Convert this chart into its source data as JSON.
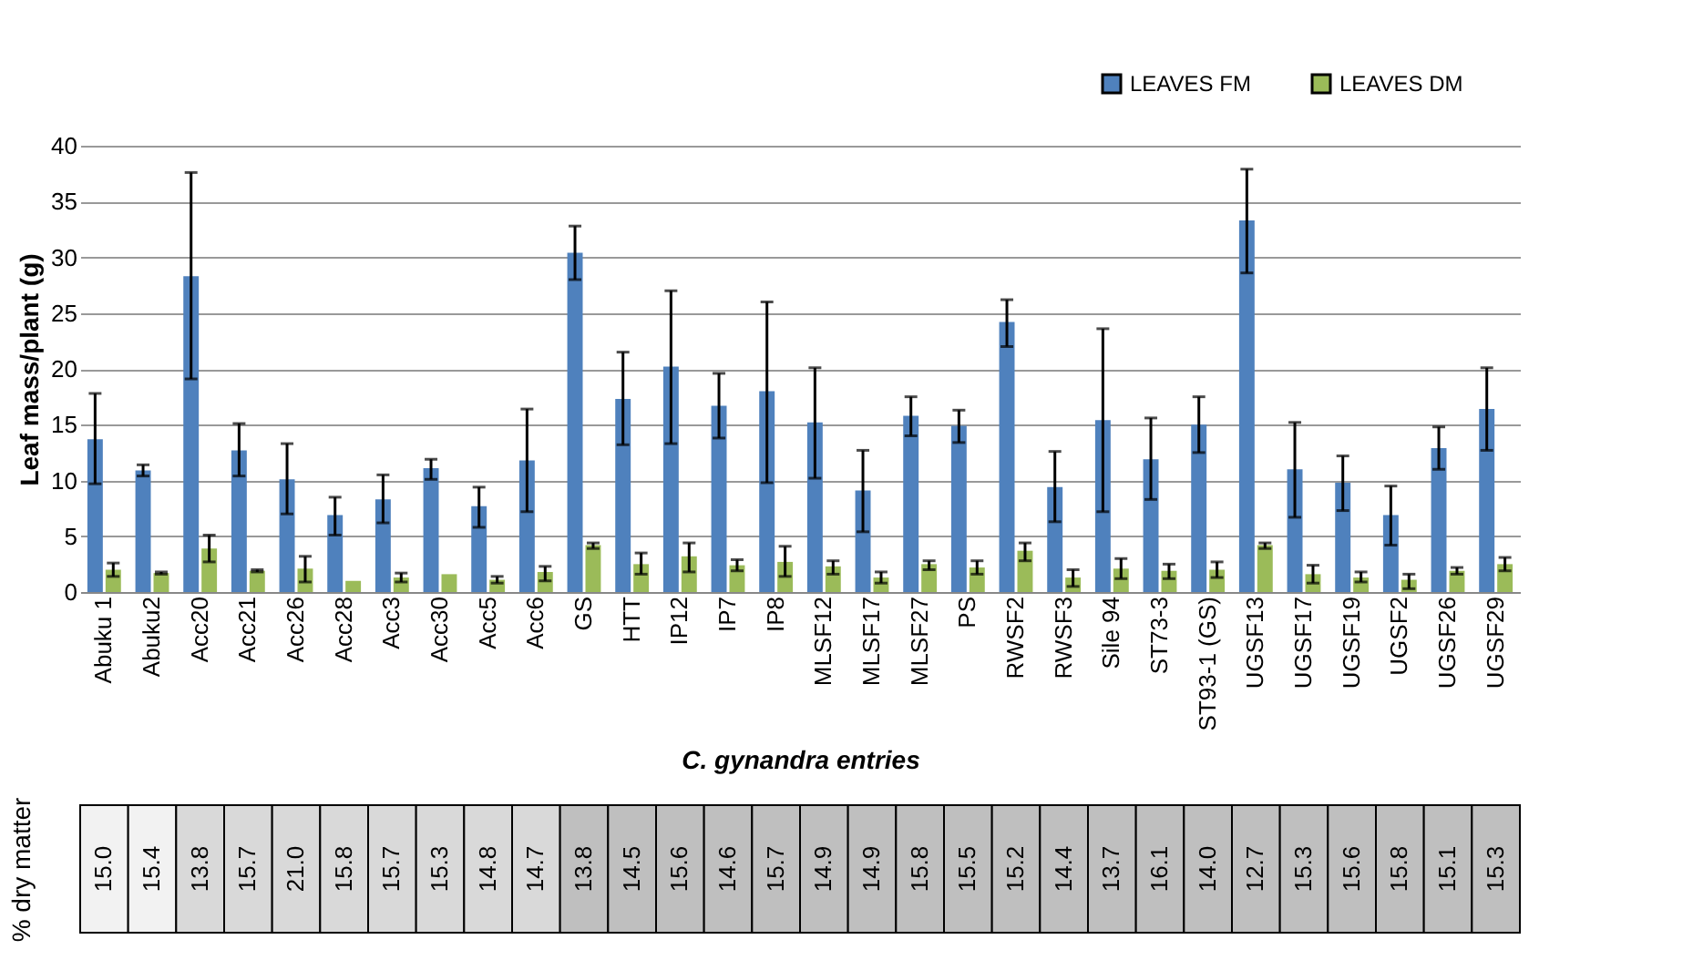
{
  "chart_data": [
    {
      "type": "bar",
      "xlabel": "C. gynandra entries",
      "ylabel": "Leaf mass/plant (g)",
      "categories": [
        "Abuku 1",
        "Abuku2",
        "Acc20",
        "Acc21",
        "Acc26",
        "Acc28",
        "Acc3",
        "Acc30",
        "Acc5",
        "Acc6",
        "GS",
        "HTT",
        "IP12",
        "IP7",
        "IP8",
        "MLSF12",
        "MLSF17",
        "MLSF27",
        "PS",
        "RWSF2",
        "RWSF3",
        "Sile 94",
        "ST73-3",
        "ST93-1 (GS)",
        "UGSF13",
        "UGSF17",
        "UGSF19",
        "UGSF2",
        "UGSF26",
        "UGSF29"
      ],
      "series": [
        {
          "name": "LEAVES FM",
          "color": "#4f81bd",
          "values": [
            13.7,
            10.9,
            28.3,
            12.7,
            10.1,
            6.9,
            8.3,
            11.1,
            7.7,
            11.8,
            30.4,
            17.3,
            20.2,
            16.7,
            18.0,
            15.2,
            9.1,
            15.8,
            14.9,
            24.2,
            9.4,
            15.4,
            11.9,
            15.0,
            33.3,
            11.0,
            9.8,
            6.9,
            12.9,
            16.4
          ],
          "errors": [
            [
              9.7,
              17.8
            ],
            [
              10.4,
              11.4
            ],
            [
              19.1,
              37.6
            ],
            [
              10.4,
              15.1
            ],
            [
              7.0,
              13.3
            ],
            [
              5.1,
              8.5
            ],
            [
              6.2,
              10.5
            ],
            [
              10.1,
              11.9
            ],
            [
              5.8,
              9.4
            ],
            [
              7.2,
              16.4
            ],
            [
              28.0,
              32.8
            ],
            [
              13.2,
              21.5
            ],
            [
              13.3,
              27.0
            ],
            [
              13.8,
              19.6
            ],
            [
              9.8,
              26.0
            ],
            [
              10.2,
              20.1
            ],
            [
              5.4,
              12.7
            ],
            [
              14.0,
              17.5
            ],
            [
              13.4,
              16.3
            ],
            [
              22.0,
              26.2
            ],
            [
              6.3,
              12.6
            ],
            [
              7.2,
              23.6
            ],
            [
              8.3,
              15.6
            ],
            [
              12.5,
              17.5
            ],
            [
              28.6,
              37.9
            ],
            [
              6.7,
              15.2
            ],
            [
              7.3,
              12.2
            ],
            [
              4.2,
              9.5
            ],
            [
              11.0,
              14.8
            ],
            [
              12.7,
              20.1
            ]
          ]
        },
        {
          "name": "LEAVES DM",
          "color": "#9bbb59",
          "values": [
            2.0,
            1.7,
            3.9,
            1.9,
            2.1,
            1.0,
            1.3,
            1.6,
            1.1,
            1.8,
            4.2,
            2.5,
            3.2,
            2.4,
            2.7,
            2.3,
            1.3,
            2.5,
            2.2,
            3.7,
            1.3,
            2.1,
            1.9,
            2.0,
            4.2,
            1.6,
            1.3,
            1.1,
            1.9,
            2.5
          ],
          "errors": [
            [
              1.4,
              2.6
            ],
            [
              1.6,
              1.8
            ],
            [
              2.7,
              5.1
            ],
            [
              1.8,
              2.0
            ],
            [
              0.9,
              3.2
            ],
            null,
            [
              0.9,
              1.7
            ],
            null,
            [
              0.8,
              1.4
            ],
            [
              1.0,
              2.3
            ],
            [
              3.9,
              4.4
            ],
            [
              1.6,
              3.5
            ],
            [
              1.8,
              4.4
            ],
            [
              1.9,
              2.9
            ],
            [
              1.4,
              4.1
            ],
            [
              1.6,
              2.8
            ],
            [
              0.8,
              1.8
            ],
            [
              2.0,
              2.8
            ],
            [
              1.6,
              2.8
            ],
            [
              2.8,
              4.4
            ],
            [
              0.5,
              2.0
            ],
            [
              1.2,
              3.0
            ],
            [
              1.2,
              2.5
            ],
            [
              1.3,
              2.7
            ],
            [
              3.9,
              4.4
            ],
            [
              0.8,
              2.4
            ],
            [
              0.9,
              1.8
            ],
            [
              0.3,
              1.6
            ],
            [
              1.6,
              2.2
            ],
            [
              1.9,
              3.1
            ]
          ]
        }
      ],
      "ylim": [
        0,
        40
      ],
      "yticks": [
        0,
        5,
        10,
        15,
        20,
        25,
        30,
        35,
        40
      ],
      "grid": "y",
      "legend": "top right"
    },
    {
      "type": "other",
      "ylabel": "% dry matter",
      "value_labels": [
        "15.0",
        "15.4",
        "13.8",
        "15.7",
        "21.0",
        "15.8",
        "15.7",
        "15.3",
        "14.8",
        "14.7",
        "13.8",
        "14.5",
        "15.6",
        "14.6",
        "15.7",
        "14.9",
        "14.9",
        "15.8",
        "15.5",
        "15.2",
        "14.4",
        "13.7",
        "16.1",
        "14.0",
        "12.7",
        "15.3",
        "15.6",
        "15.8",
        "15.1",
        "15.3"
      ],
      "values": [
        15.0,
        15.4,
        13.8,
        15.7,
        21.0,
        15.8,
        15.7,
        15.3,
        14.8,
        14.7,
        13.8,
        14.5,
        15.6,
        14.6,
        15.7,
        14.9,
        14.9,
        15.8,
        15.5,
        15.2,
        14.4,
        13.7,
        16.1,
        14.0,
        12.7,
        15.3,
        15.6,
        15.8,
        15.1,
        15.3
      ],
      "colors": [
        "#f2f2f2",
        "#f2f2f2",
        "#d9d9d9",
        "#d9d9d9",
        "#d9d9d9",
        "#d9d9d9",
        "#d9d9d9",
        "#d9d9d9",
        "#d9d9d9",
        "#d9d9d9",
        "#bfbfbf",
        "#bfbfbf",
        "#bfbfbf",
        "#bfbfbf",
        "#bfbfbf",
        "#bfbfbf",
        "#bfbfbf",
        "#bfbfbf",
        "#bfbfbf",
        "#bfbfbf",
        "#bfbfbf",
        "#bfbfbf",
        "#bfbfbf",
        "#bfbfbf",
        "#bfbfbf",
        "#bfbfbf",
        "#bfbfbf",
        "#bfbfbf",
        "#bfbfbf",
        "#bfbfbf"
      ]
    }
  ]
}
